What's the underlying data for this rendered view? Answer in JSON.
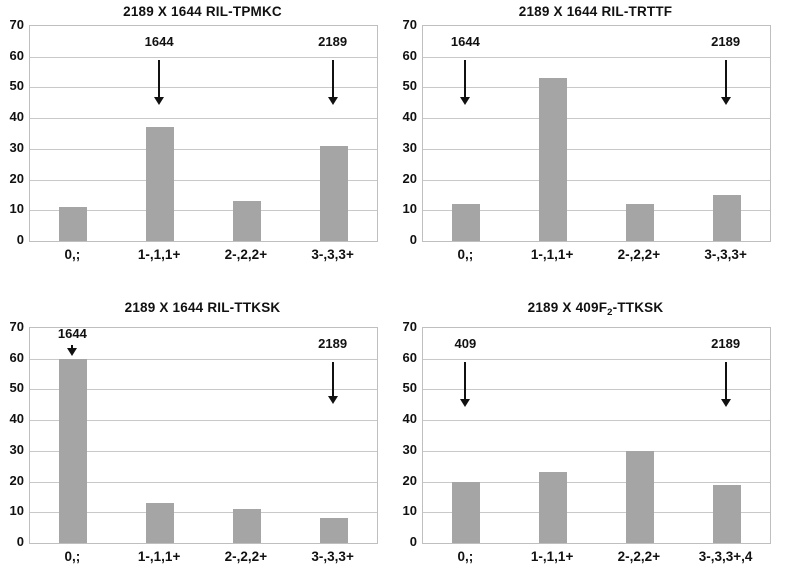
{
  "figure": {
    "background": "#ffffff",
    "bar_color": "#a5a5a5",
    "grid_color": "#c9c9c9",
    "plot_border_color": "#bfbfbf",
    "text_color": "#111111",
    "arrow_color": "#111111"
  },
  "chart_data": [
    {
      "type": "bar",
      "title": "2189 X 1644 RIL-TPMKC",
      "title_parts": [
        {
          "text": "2189 X 1644 RIL-TPMKC",
          "sub": false
        }
      ],
      "categories": [
        "0,;",
        "1-,1,1+",
        "2-,2,2+",
        "3-,3,3+"
      ],
      "values": [
        11,
        37,
        13,
        31
      ],
      "xlabel": "",
      "ylabel": "",
      "ylim": [
        0,
        70
      ],
      "ytick_step": 10,
      "grid": true,
      "legend": "none",
      "annotations": [
        {
          "label": "1644",
          "category_index": 1,
          "label_bottom": 62,
          "line_top": 58.5,
          "tip": 44
        },
        {
          "label": "2189",
          "category_index": 3,
          "label_bottom": 62,
          "line_top": 58.5,
          "tip": 44
        }
      ]
    },
    {
      "type": "bar",
      "title": "2189 X 1644 RIL-TRTTF",
      "title_parts": [
        {
          "text": "2189 X 1644 RIL-TRTTF",
          "sub": false
        }
      ],
      "categories": [
        "0,;",
        "1-,1,1+",
        "2-,2,2+",
        "3-,3,3+"
      ],
      "values": [
        12,
        53,
        12,
        15
      ],
      "xlabel": "",
      "ylabel": "",
      "ylim": [
        0,
        70
      ],
      "ytick_step": 10,
      "grid": true,
      "legend": "none",
      "annotations": [
        {
          "label": "1644",
          "category_index": 0,
          "label_bottom": 62,
          "line_top": 58.5,
          "tip": 44
        },
        {
          "label": "2189",
          "category_index": 3,
          "label_bottom": 62,
          "line_top": 58.5,
          "tip": 44
        }
      ]
    },
    {
      "type": "bar",
      "title": "2189 X 1644 RIL-TTKSK",
      "title_parts": [
        {
          "text": "2189 X 1644 RIL-TTKSK",
          "sub": false
        }
      ],
      "categories": [
        "0,;",
        "1-,1,1+",
        "2-,2,2+",
        "3-,3,3+"
      ],
      "values": [
        60,
        13,
        11,
        8
      ],
      "xlabel": "",
      "ylabel": "",
      "ylim": [
        0,
        70
      ],
      "ytick_step": 10,
      "grid": true,
      "legend": "none",
      "annotations": [
        {
          "label": "1644",
          "category_index": 0,
          "label_bottom": 65.2,
          "line_top": 64.3,
          "tip": 60.6
        },
        {
          "label": "2189",
          "category_index": 3,
          "label_bottom": 62,
          "line_top": 58.5,
          "tip": 45
        }
      ]
    },
    {
      "type": "bar",
      "title": "2189 X 409F₂-TTKSK",
      "title_parts": [
        {
          "text": "2189 X 409F",
          "sub": false
        },
        {
          "text": "2",
          "sub": true
        },
        {
          "text": "-TTKSK",
          "sub": false
        }
      ],
      "categories": [
        "0,;",
        "1-,1,1+",
        "2-,2,2+",
        "3-,3,3+,4"
      ],
      "values": [
        20,
        23,
        30,
        19
      ],
      "xlabel": "",
      "ylabel": "",
      "ylim": [
        0,
        70
      ],
      "ytick_step": 10,
      "grid": true,
      "legend": "none",
      "annotations": [
        {
          "label": "409",
          "category_index": 0,
          "label_bottom": 62,
          "line_top": 58.5,
          "tip": 44
        },
        {
          "label": "2189",
          "category_index": 3,
          "label_bottom": 62,
          "line_top": 58.5,
          "tip": 44
        }
      ]
    }
  ]
}
